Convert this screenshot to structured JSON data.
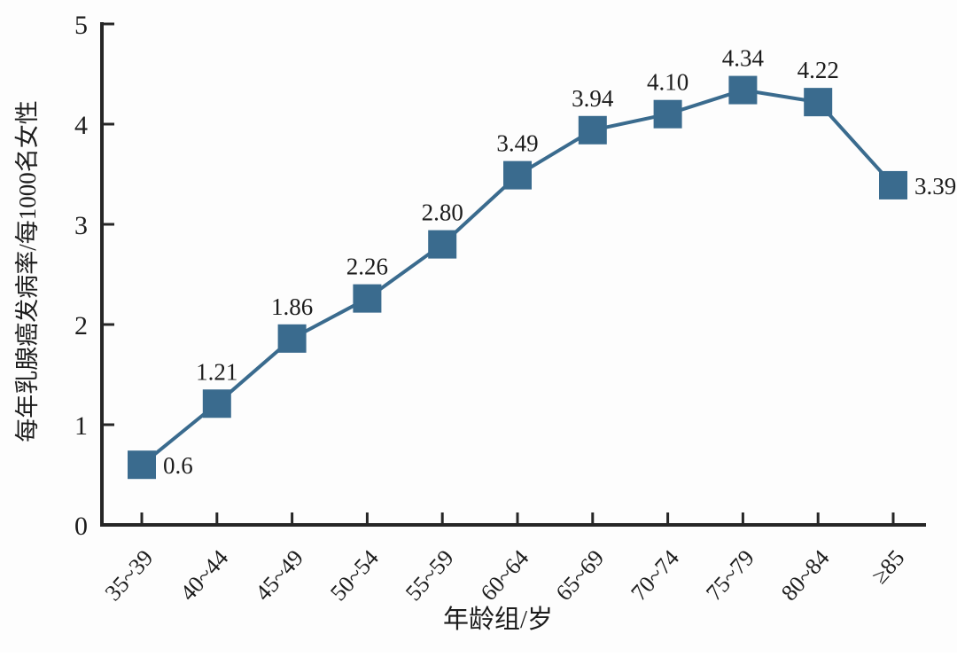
{
  "figure": {
    "background": "#fdfdfd"
  },
  "chart_data": {
    "type": "line",
    "title": "",
    "xlabel": "年龄组/岁",
    "ylabel": "每年乳腺癌发病率/每1000名女性",
    "categories": [
      "35~39",
      "40~44",
      "45~49",
      "50~54",
      "55~59",
      "60~64",
      "65~69",
      "70~74",
      "75~79",
      "80~84",
      "≥85"
    ],
    "values": [
      0.6,
      1.21,
      1.86,
      2.26,
      2.8,
      3.49,
      3.94,
      4.1,
      4.34,
      4.22,
      3.39
    ],
    "value_labels": [
      "0.6",
      "1.21",
      "1.86",
      "2.26",
      "2.80",
      "3.49",
      "3.94",
      "4.10",
      "4.34",
      "4.22",
      "3.39"
    ],
    "value_label_placement": [
      "right",
      "above",
      "above",
      "above",
      "above",
      "above",
      "above",
      "above",
      "above",
      "above",
      "right"
    ],
    "ylim": [
      0,
      5
    ],
    "yticks": [
      0,
      1,
      2,
      3,
      4,
      5
    ],
    "grid": false,
    "legend": "none",
    "marker": "square",
    "colors": {
      "line": "#3a6b8e",
      "marker": "#3a6b8e",
      "axis": "#262626",
      "text": "#1c1c1c",
      "background": "#fdfdfd"
    }
  }
}
